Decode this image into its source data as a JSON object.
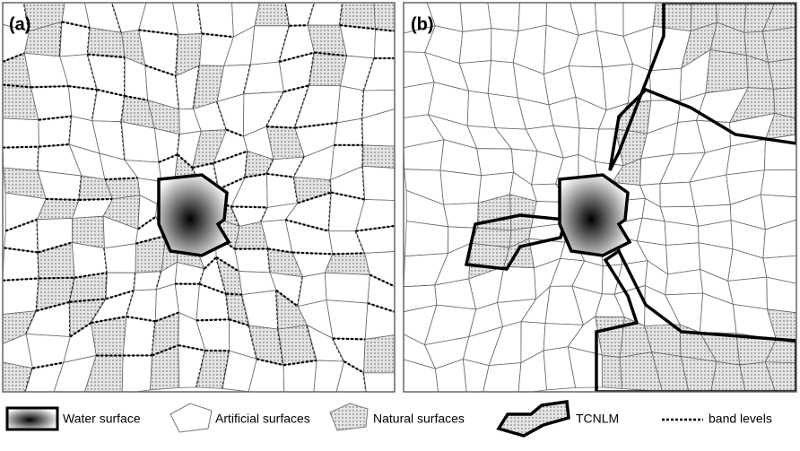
{
  "panels": [
    {
      "label": "(a)"
    },
    {
      "label": "(b)"
    }
  ],
  "legend": [
    "Water surface",
    "Artificial surfaces",
    "Natural surfaces",
    "TCNLM",
    "band levels"
  ]
}
